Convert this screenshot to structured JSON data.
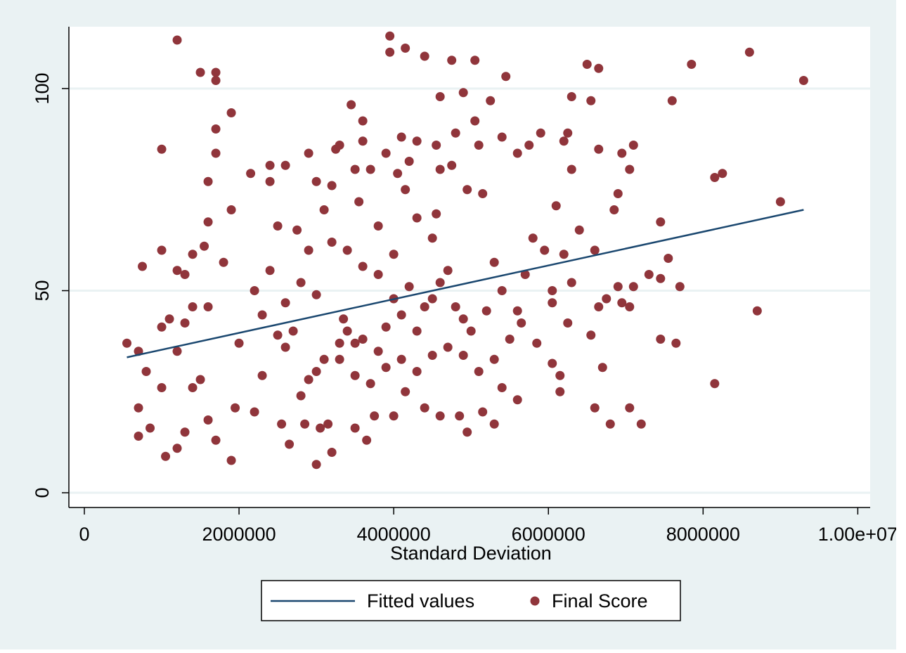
{
  "chart_data": {
    "type": "scatter",
    "x_label": "Standard Deviation",
    "xlim": [
      -200000,
      10160000
    ],
    "ylim": [
      -3.65,
      115.3
    ],
    "xticks": [
      0,
      2000000,
      4000000,
      6000000,
      8000000,
      {
        "value": 10000000,
        "label": "1.00e+07"
      }
    ],
    "yticks": [
      0,
      50,
      100
    ],
    "grid": true,
    "legend": "bottom",
    "series": [
      {
        "name": "Fitted values",
        "type": "line",
        "color": "#1a476f",
        "x": [
          550000,
          9300000
        ],
        "values": [
          33.5,
          70
        ]
      },
      {
        "name": "Final Score",
        "type": "scatter",
        "color": "#90353b",
        "x": [
          1200000,
          1500000,
          1700000,
          1700000,
          1900000,
          1000000,
          1700000,
          1700000,
          1600000,
          1900000,
          1600000,
          1000000,
          1400000,
          1550000,
          1200000,
          1300000,
          1800000,
          750000,
          550000,
          700000,
          1000000,
          1100000,
          1300000,
          1400000,
          1600000,
          1200000,
          1500000,
          1400000,
          700000,
          800000,
          1000000,
          700000,
          850000,
          1050000,
          1200000,
          1300000,
          1600000,
          1700000,
          1900000,
          1950000,
          2000000,
          2150000,
          2400000,
          2600000,
          2400000,
          2500000,
          2750000,
          2900000,
          3000000,
          3200000,
          3250000,
          3300000,
          3450000,
          3500000,
          3550000,
          3600000,
          3600000,
          3700000,
          3800000,
          3900000,
          3950000,
          3950000,
          4150000,
          4400000,
          4750000,
          5050000,
          5450000,
          4600000,
          4900000,
          5250000,
          5050000,
          5100000,
          4800000,
          4100000,
          4300000,
          4200000,
          4050000,
          4150000,
          4550000,
          4600000,
          4750000,
          4950000,
          5150000,
          5400000,
          5600000,
          5750000,
          5900000,
          6250000,
          6300000,
          6500000,
          6650000,
          6550000,
          6300000,
          6200000,
          6100000,
          6650000,
          6950000,
          7100000,
          7050000,
          6900000,
          6850000,
          7600000,
          7850000,
          8600000,
          9300000,
          8150000,
          8250000,
          9000000,
          7450000,
          7550000,
          7450000,
          7300000,
          7700000,
          8700000,
          8150000,
          7450000,
          7650000,
          7200000,
          7050000,
          6800000,
          6700000,
          6600000,
          6550000,
          6650000,
          6600000,
          6750000,
          6900000,
          6950000,
          7050000,
          7100000,
          6400000,
          6200000,
          6300000,
          6250000,
          6050000,
          6050000,
          6050000,
          6150000,
          6150000,
          5850000,
          5950000,
          5650000,
          5600000,
          5300000,
          5400000,
          5150000,
          4950000,
          4850000,
          4600000,
          4400000,
          4150000,
          4000000,
          3750000,
          3650000,
          3500000,
          3200000,
          3000000,
          3050000,
          3150000,
          2850000,
          2650000,
          2550000,
          2200000,
          2300000,
          2600000,
          2800000,
          2900000,
          3100000,
          3300000,
          3400000,
          3600000,
          3800000,
          3900000,
          4100000,
          4300000,
          4500000,
          4600000,
          4700000,
          4800000,
          4900000,
          5000000,
          5200000,
          5300000,
          5400000,
          5500000,
          5600000,
          5700000,
          5800000,
          4500000,
          4300000,
          4550000,
          4000000,
          3800000,
          3600000,
          3400000,
          3200000,
          3000000,
          2800000,
          2600000,
          2400000,
          2200000,
          2300000,
          2500000,
          2700000,
          2900000,
          3100000,
          3350000,
          3500000,
          3700000,
          3900000,
          4100000,
          4300000,
          4500000,
          4700000,
          4900000,
          5100000,
          5300000,
          3000000,
          3300000,
          3500000,
          4000000,
          4200000,
          4400000
        ],
        "values": [
          112,
          104,
          104,
          102,
          94,
          85,
          90,
          84,
          77,
          70,
          67,
          60,
          59,
          61,
          55,
          54,
          57,
          56,
          37,
          35,
          41,
          43,
          42,
          46,
          46,
          35,
          28,
          26,
          21,
          30,
          26,
          14,
          16,
          9,
          11,
          15,
          18,
          13,
          8,
          21,
          37,
          79,
          81,
          81,
          77,
          66,
          65,
          84,
          77,
          76,
          85,
          86,
          96,
          80,
          72,
          92,
          87,
          80,
          66,
          84,
          113,
          109,
          110,
          108,
          107,
          107,
          103,
          98,
          99,
          97,
          92,
          86,
          89,
          88,
          87,
          82,
          79,
          75,
          86,
          80,
          81,
          75,
          74,
          88,
          84,
          86,
          89,
          89,
          80,
          106,
          105,
          97,
          98,
          87,
          71,
          85,
          84,
          86,
          80,
          74,
          70,
          97,
          106,
          109,
          102,
          78,
          79,
          72,
          67,
          58,
          53,
          54,
          51,
          45,
          27,
          38,
          37,
          17,
          21,
          17,
          31,
          21,
          39,
          46,
          60,
          48,
          51,
          47,
          46,
          51,
          65,
          59,
          52,
          42,
          47,
          50,
          32,
          29,
          25,
          37,
          60,
          42,
          23,
          17,
          26,
          20,
          15,
          19,
          19,
          21,
          25,
          19,
          19,
          13,
          16,
          10,
          7,
          16,
          17,
          17,
          12,
          17,
          20,
          29,
          36,
          24,
          28,
          33,
          37,
          40,
          38,
          35,
          41,
          44,
          40,
          48,
          52,
          55,
          46,
          43,
          40,
          45,
          57,
          50,
          38,
          45,
          54,
          63,
          63,
          68,
          69,
          59,
          54,
          56,
          60,
          62,
          49,
          52,
          47,
          55,
          50,
          44,
          39,
          40,
          60,
          70,
          43,
          29,
          27,
          31,
          33,
          30,
          34,
          36,
          34,
          30,
          33,
          30,
          33,
          37,
          48,
          51,
          46
        ]
      }
    ]
  }
}
